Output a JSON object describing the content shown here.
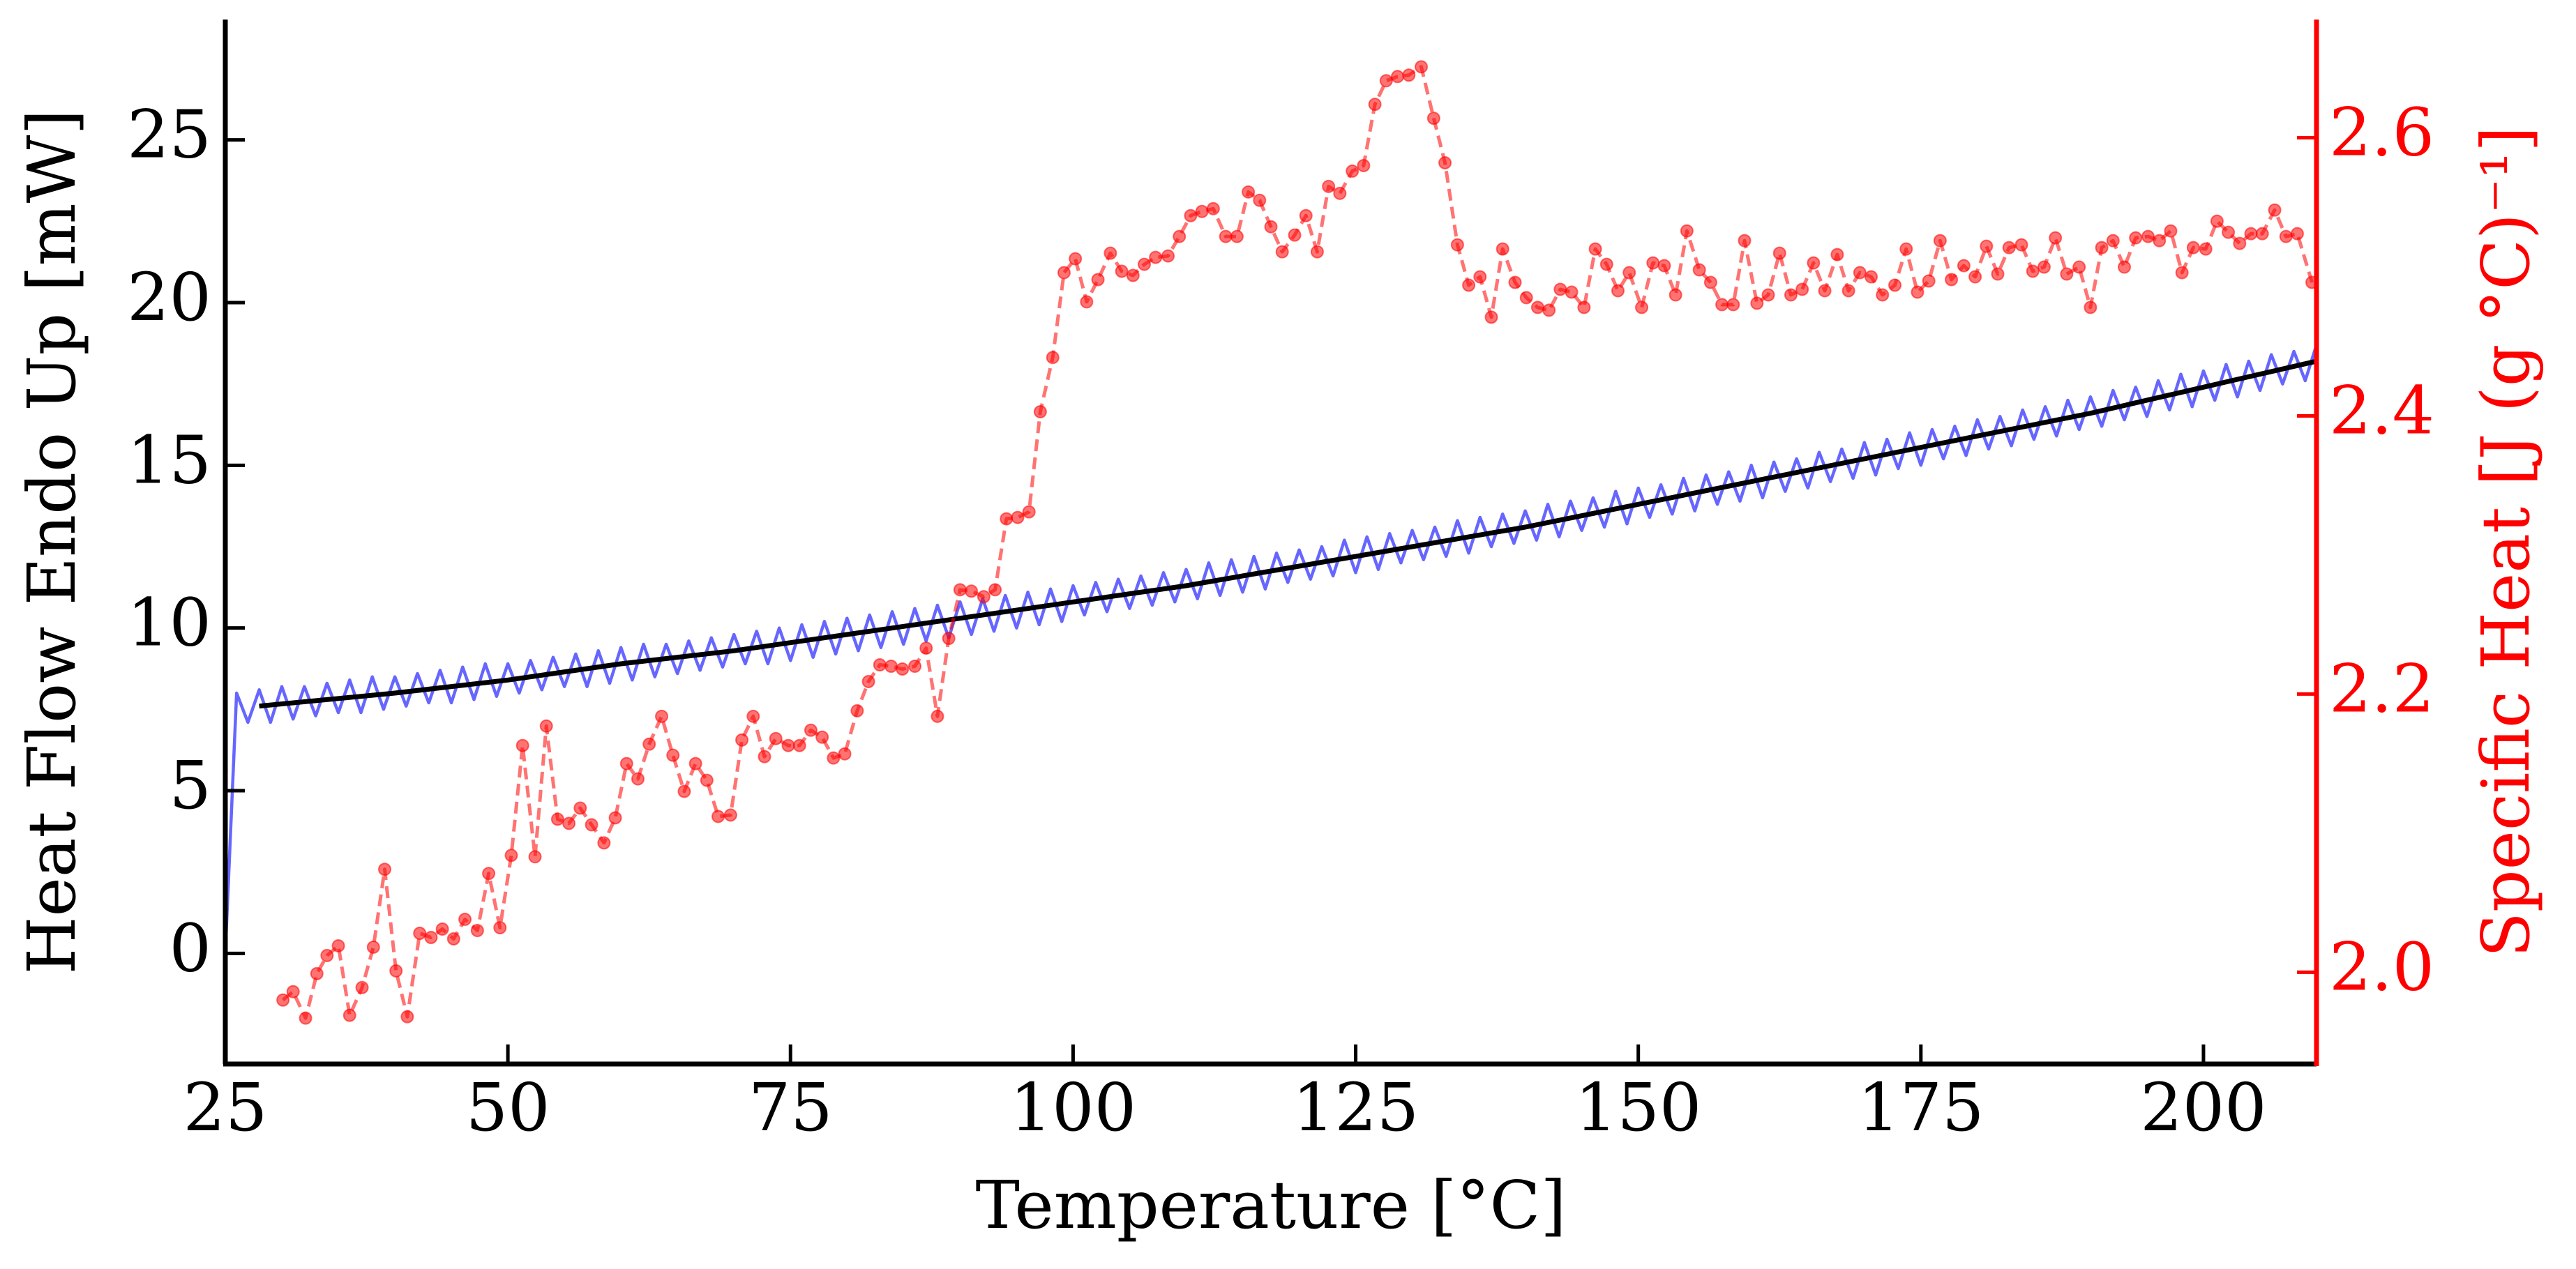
{
  "chart_data": {
    "type": "line",
    "xlabel": "Temperature [°C]",
    "ylabel": "Heat Flow Endo Up [mW]",
    "y2label": "Specific Heat [J (g °C)⁻¹]",
    "xlim": [
      25,
      210
    ],
    "ylim": [
      -3.4,
      28.7
    ],
    "y2lim": [
      1.934,
      2.685
    ],
    "xticks": [
      25,
      50,
      75,
      100,
      125,
      150,
      175,
      200
    ],
    "yticks": [
      0,
      5,
      10,
      15,
      20,
      25
    ],
    "y2ticks": [
      {
        "value": 2,
        "label": "2.0"
      },
      {
        "value": 2.2,
        "label": "2.2"
      },
      {
        "value": 2.4,
        "label": "2.4"
      },
      {
        "value": 2.6,
        "label": "2.6"
      }
    ],
    "y2color": "#ff0000",
    "series": [
      {
        "color": "#0000ff",
        "alpha": 0.6,
        "linestyle": "solid",
        "marker": "none",
        "axis": "y",
        "x": [
          25,
          26,
          27,
          28,
          29,
          30,
          31,
          32,
          33,
          34,
          35,
          36,
          37,
          38,
          39,
          40,
          41,
          42,
          43,
          44,
          45,
          46,
          47,
          48,
          49,
          50,
          51,
          52,
          53,
          54,
          55,
          56,
          57,
          58,
          59,
          60,
          61,
          62,
          63,
          64,
          65,
          66,
          67,
          68,
          69,
          70,
          71,
          72,
          73,
          74,
          75,
          76,
          77,
          78,
          79,
          80,
          81,
          82,
          83,
          84,
          85,
          86,
          87,
          88,
          89,
          90,
          91,
          92,
          93,
          94,
          95,
          96,
          97,
          98,
          99,
          100,
          101,
          102,
          103,
          104,
          105,
          106,
          107,
          108,
          109,
          110,
          111,
          112,
          113,
          114,
          115,
          116,
          117,
          118,
          119,
          120,
          121,
          122,
          123,
          124,
          125,
          126,
          127,
          128,
          129,
          130,
          131,
          132,
          133,
          134,
          135,
          136,
          137,
          138,
          139,
          140,
          141,
          142,
          143,
          144,
          145,
          146,
          147,
          148,
          149,
          150,
          151,
          152,
          153,
          154,
          155,
          156,
          157,
          158,
          159,
          160,
          161,
          162,
          163,
          164,
          165,
          166,
          167,
          168,
          169,
          170,
          171,
          172,
          173,
          174,
          175,
          176,
          177,
          178,
          179,
          180,
          181,
          182,
          183,
          184,
          185,
          186,
          187,
          188,
          189,
          190,
          191,
          192,
          193,
          194,
          195,
          196,
          197,
          198,
          199,
          200,
          201,
          202,
          203,
          204,
          205,
          206,
          207,
          208,
          209,
          210
        ],
        "values": [
          0,
          8.0,
          7.1,
          8.1,
          7.1,
          8.2,
          7.2,
          8.2,
          7.3,
          8.3,
          7.4,
          8.4,
          7.4,
          8.5,
          7.5,
          8.5,
          7.6,
          8.6,
          7.7,
          8.7,
          7.7,
          8.8,
          7.8,
          8.9,
          7.9,
          8.9,
          8.0,
          9.0,
          8.1,
          9.1,
          8.2,
          9.2,
          8.2,
          9.3,
          8.3,
          9.4,
          8.4,
          9.5,
          8.5,
          9.5,
          8.6,
          9.6,
          8.7,
          9.7,
          8.8,
          9.8,
          8.9,
          9.9,
          8.9,
          10.0,
          9.0,
          10.1,
          9.1,
          10.2,
          9.2,
          10.3,
          9.3,
          10.4,
          9.4,
          10.5,
          9.5,
          10.6,
          9.6,
          10.7,
          9.7,
          10.8,
          9.8,
          10.9,
          9.9,
          11.0,
          10.0,
          11.1,
          10.1,
          11.2,
          10.2,
          11.3,
          10.4,
          11.4,
          10.5,
          11.5,
          10.6,
          11.6,
          10.7,
          11.7,
          10.8,
          11.8,
          10.9,
          12.0,
          11.0,
          12.1,
          11.1,
          12.2,
          11.2,
          12.3,
          11.4,
          12.4,
          11.5,
          12.5,
          11.6,
          12.7,
          11.7,
          12.8,
          11.8,
          12.9,
          12.0,
          13.0,
          12.1,
          13.1,
          12.2,
          13.3,
          12.3,
          13.4,
          12.5,
          13.5,
          12.6,
          13.6,
          12.7,
          13.8,
          12.8,
          13.9,
          13.0,
          14.0,
          13.1,
          14.2,
          13.2,
          14.3,
          13.4,
          14.4,
          13.5,
          14.6,
          13.6,
          14.7,
          13.8,
          14.8,
          13.9,
          15.0,
          14.0,
          15.1,
          14.2,
          15.2,
          14.3,
          15.4,
          14.5,
          15.5,
          14.6,
          15.7,
          14.7,
          15.8,
          14.9,
          16.0,
          15.0,
          16.1,
          15.2,
          16.2,
          15.3,
          16.4,
          15.5,
          16.5,
          15.6,
          16.7,
          15.8,
          16.8,
          15.9,
          17.0,
          16.1,
          17.1,
          16.2,
          17.3,
          16.4,
          17.4,
          16.5,
          17.6,
          16.7,
          17.8,
          16.8,
          17.9,
          17.0,
          18.1,
          17.1,
          18.2,
          17.3,
          18.4,
          17.5,
          18.5,
          17.6,
          18.7
        ]
      },
      {
        "color": "#000000",
        "alpha": 1,
        "linestyle": "solid",
        "marker": "none",
        "axis": "y",
        "x": [
          28,
          40,
          50,
          60,
          70,
          80,
          90,
          100,
          110,
          120,
          130,
          140,
          150,
          160,
          170,
          180,
          190,
          200,
          210
        ],
        "values": [
          7.6,
          8.0,
          8.4,
          8.9,
          9.3,
          9.8,
          10.3,
          10.8,
          11.3,
          11.9,
          12.5,
          13.1,
          13.8,
          14.5,
          15.2,
          15.9,
          16.6,
          17.4,
          18.2
        ]
      },
      {
        "color": "#ff0000",
        "alpha": 0.55,
        "linestyle": "dashed",
        "marker": "o",
        "axis": "y2",
        "x": [
          30.1,
          31,
          32.1,
          33.1,
          34,
          35,
          36,
          37.1,
          38.1,
          39.1,
          40.1,
          41.1,
          42.2,
          43.2,
          44.2,
          45.2,
          46.2,
          47.3,
          48.3,
          49.3,
          50.3,
          51.3,
          52.4,
          53.4,
          54.4,
          55.4,
          56.4,
          57.4,
          58.5,
          59.5,
          60.5,
          61.5,
          62.5,
          63.6,
          64.6,
          65.6,
          66.6,
          67.6,
          68.6,
          69.7,
          70.7,
          71.7,
          72.7,
          73.7,
          74.8,
          75.8,
          76.8,
          77.8,
          78.8,
          79.8,
          80.9,
          81.9,
          82.9,
          83.9,
          84.9,
          86,
          87,
          88,
          89,
          90,
          91,
          92.1,
          93.1,
          94.1,
          95.1,
          96.1,
          97.1,
          98.2,
          99.2,
          100.2,
          101.2,
          102.2,
          103.3,
          104.3,
          105.3,
          106.3,
          107.3,
          108.4,
          109.4,
          110.4,
          111.4,
          112.4,
          113.5,
          114.5,
          115.5,
          116.5,
          117.5,
          118.5,
          119.6,
          120.6,
          121.6,
          122.6,
          123.6,
          124.7,
          125.7,
          126.7,
          127.7,
          128.7,
          129.7,
          130.8,
          131.9,
          132.9,
          134,
          135,
          136,
          137,
          138,
          139.1,
          140.1,
          141.1,
          142.1,
          143.1,
          144.1,
          145.2,
          146.2,
          147.2,
          148.2,
          149.2,
          150.3,
          151.3,
          152.3,
          153.3,
          154.3,
          155.4,
          156.4,
          157.4,
          158.4,
          159.4,
          160.5,
          161.5,
          162.5,
          163.5,
          164.5,
          165.5,
          166.5,
          167.6,
          168.6,
          169.6,
          170.6,
          171.6,
          172.7,
          173.7,
          174.7,
          175.7,
          176.7,
          177.7,
          178.8,
          179.8,
          180.8,
          181.8,
          182.8,
          183.9,
          184.9,
          185.9,
          186.9,
          187.9,
          189,
          190,
          191,
          192,
          193,
          194,
          195.1,
          196.1,
          197.1,
          198.1,
          199.1,
          200.2,
          201.2,
          202.2,
          203.2,
          204.2,
          205.2,
          206.3,
          207.3,
          208.3,
          209.6
        ],
        "values": [
          1.98,
          1.986,
          1.967,
          1.999,
          2.012,
          2.019,
          1.969,
          1.989,
          2.018,
          2.074,
          2.001,
          1.968,
          2.028,
          2.025,
          2.031,
          2.024,
          2.038,
          2.03,
          2.071,
          2.032,
          2.084,
          2.163,
          2.083,
          2.177,
          2.11,
          2.107,
          2.118,
          2.106,
          2.093,
          2.111,
          2.15,
          2.139,
          2.164,
          2.184,
          2.156,
          2.13,
          2.15,
          2.138,
          2.112,
          2.113,
          2.167,
          2.184,
          2.155,
          2.168,
          2.163,
          2.163,
          2.174,
          2.169,
          2.154,
          2.157,
          2.188,
          2.209,
          2.221,
          2.22,
          2.218,
          2.22,
          2.233,
          2.184,
          2.24,
          2.275,
          2.274,
          2.27,
          2.275,
          2.326,
          2.327,
          2.331,
          2.403,
          2.442,
          2.503,
          2.513,
          2.482,
          2.498,
          2.517,
          2.504,
          2.501,
          2.509,
          2.514,
          2.515,
          2.529,
          2.544,
          2.547,
          2.549,
          2.529,
          2.529,
          2.561,
          2.555,
          2.536,
          2.518,
          2.53,
          2.544,
          2.518,
          2.565,
          2.56,
          2.576,
          2.58,
          2.624,
          2.641,
          2.644,
          2.645,
          2.651,
          2.614,
          2.582,
          2.523,
          2.494,
          2.5,
          2.471,
          2.52,
          2.496,
          2.485,
          2.478,
          2.476,
          2.491,
          2.489,
          2.478,
          2.52,
          2.509,
          2.49,
          2.503,
          2.478,
          2.51,
          2.508,
          2.487,
          2.533,
          2.505,
          2.496,
          2.48,
          2.48,
          2.526,
          2.481,
          2.487,
          2.517,
          2.487,
          2.491,
          2.51,
          2.49,
          2.516,
          2.49,
          2.503,
          2.5,
          2.487,
          2.494,
          2.52,
          2.489,
          2.497,
          2.526,
          2.498,
          2.508,
          2.5,
          2.522,
          2.502,
          2.521,
          2.523,
          2.504,
          2.507,
          2.528,
          2.502,
          2.507,
          2.478,
          2.521,
          2.526,
          2.507,
          2.528,
          2.529,
          2.526,
          2.533,
          2.503,
          2.521,
          2.52,
          2.54,
          2.532,
          2.524,
          2.531,
          2.531,
          2.548,
          2.529,
          2.531,
          2.496
        ]
      }
    ]
  }
}
